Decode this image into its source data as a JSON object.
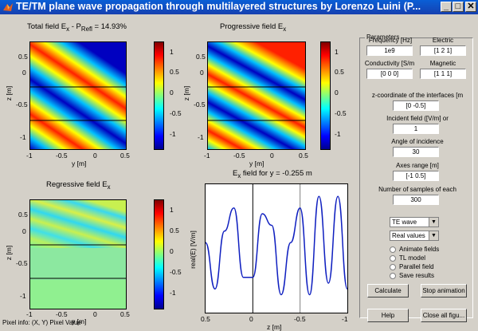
{
  "window": {
    "title": "TE/TM plane wave propagation through multilayered structures by Lorenzo Luini (P...",
    "min_symbol": "_",
    "max_symbol": "□",
    "close_symbol": "✕"
  },
  "plots": {
    "total": {
      "title": "Total field E",
      "title_sub": "x",
      "title_extra": " - P",
      "title_sub2": "Refl",
      "title_tail": " = 14.93%",
      "xlabel": "y [m]",
      "ylabel": "z [m]"
    },
    "progressive": {
      "title": "Progressive field E",
      "title_sub": "x",
      "xlabel": "y [m]",
      "ylabel": "z [m]"
    },
    "regressive": {
      "title": "Regressive field E",
      "title_sub": "x",
      "xlabel": "y [m]",
      "ylabel": "z [m]"
    },
    "line": {
      "title": "E",
      "title_sub": "x",
      "title_tail": " field for y = -0.255 m",
      "xlabel": "z [m]",
      "ylabel": "real(E) [V/m]"
    }
  },
  "ticks": {
    "y_axis": [
      "0.5",
      "0",
      "-0.5",
      "-1"
    ],
    "x_axis": [
      "-1",
      "-0.5",
      "0",
      "0.5"
    ],
    "cbar": [
      "1",
      "0.5",
      "0",
      "-0.5",
      "-1"
    ],
    "line_x": [
      "0.5",
      "0",
      "-0.5",
      "-1"
    ]
  },
  "chart_data": {
    "type": "line",
    "title": "Ex field for y = -0.255 m",
    "xlabel": "z [m]",
    "ylabel": "real(E) [V/m]",
    "xlim": [
      0.5,
      -1
    ],
    "interfaces": [
      0,
      -0.5
    ],
    "x": [
      0.5,
      0.4,
      0.3,
      0.2,
      0.1,
      0.0,
      -0.1,
      -0.2,
      -0.3,
      -0.4,
      -0.5,
      -0.6,
      -0.7,
      -0.8,
      -0.9,
      -1.0
    ],
    "series": [
      {
        "values": [
          0.1,
          -0.7,
          0.3,
          0.7,
          -0.5,
          -0.5,
          0.6,
          0.4,
          -0.8,
          0.1,
          0.7,
          -0.8,
          0.9,
          -0.6,
          0.9,
          -0.7
        ]
      }
    ]
  },
  "panel": {
    "title": "Parameters",
    "frequency_label": "Frequency [Hz]",
    "frequency_value": "1e9",
    "electric_label": "Electric",
    "electric_value": "[1 2 1]",
    "conductivity_label": "Conductivity [S/m",
    "conductivity_value": "[0 0 0]",
    "magnetic_label": "Magnetic",
    "magnetic_value": "[1 1 1]",
    "zcoord_label": "z-coordinate of the interfaces [m",
    "zcoord_value": "[0 -0.5]",
    "incident_label": "Incident field ([V/m] or",
    "incident_value": "1",
    "angle_label": "Angle of incidence",
    "angle_value": "30",
    "axes_label": "Axes range  [m]",
    "axes_value": "[-1 0.5]",
    "samples_label": "Number of samples of each",
    "samples_value": "300",
    "wave_select": "TE wave",
    "values_select": "Real values",
    "radio_animate": "Animate fields",
    "radio_tl": "TL model",
    "radio_parallel": "Parallel field",
    "radio_save": "Save results",
    "calculate": "Calculate",
    "stop": "Stop animation",
    "help": "Help",
    "close_all": "Close all figu..."
  },
  "status": "Pixel info: (X, Y)  Pixel Value",
  "colors": {
    "title_bar": "#0a5fd6",
    "face": "#d4d0c8",
    "line": "#1020c0"
  }
}
